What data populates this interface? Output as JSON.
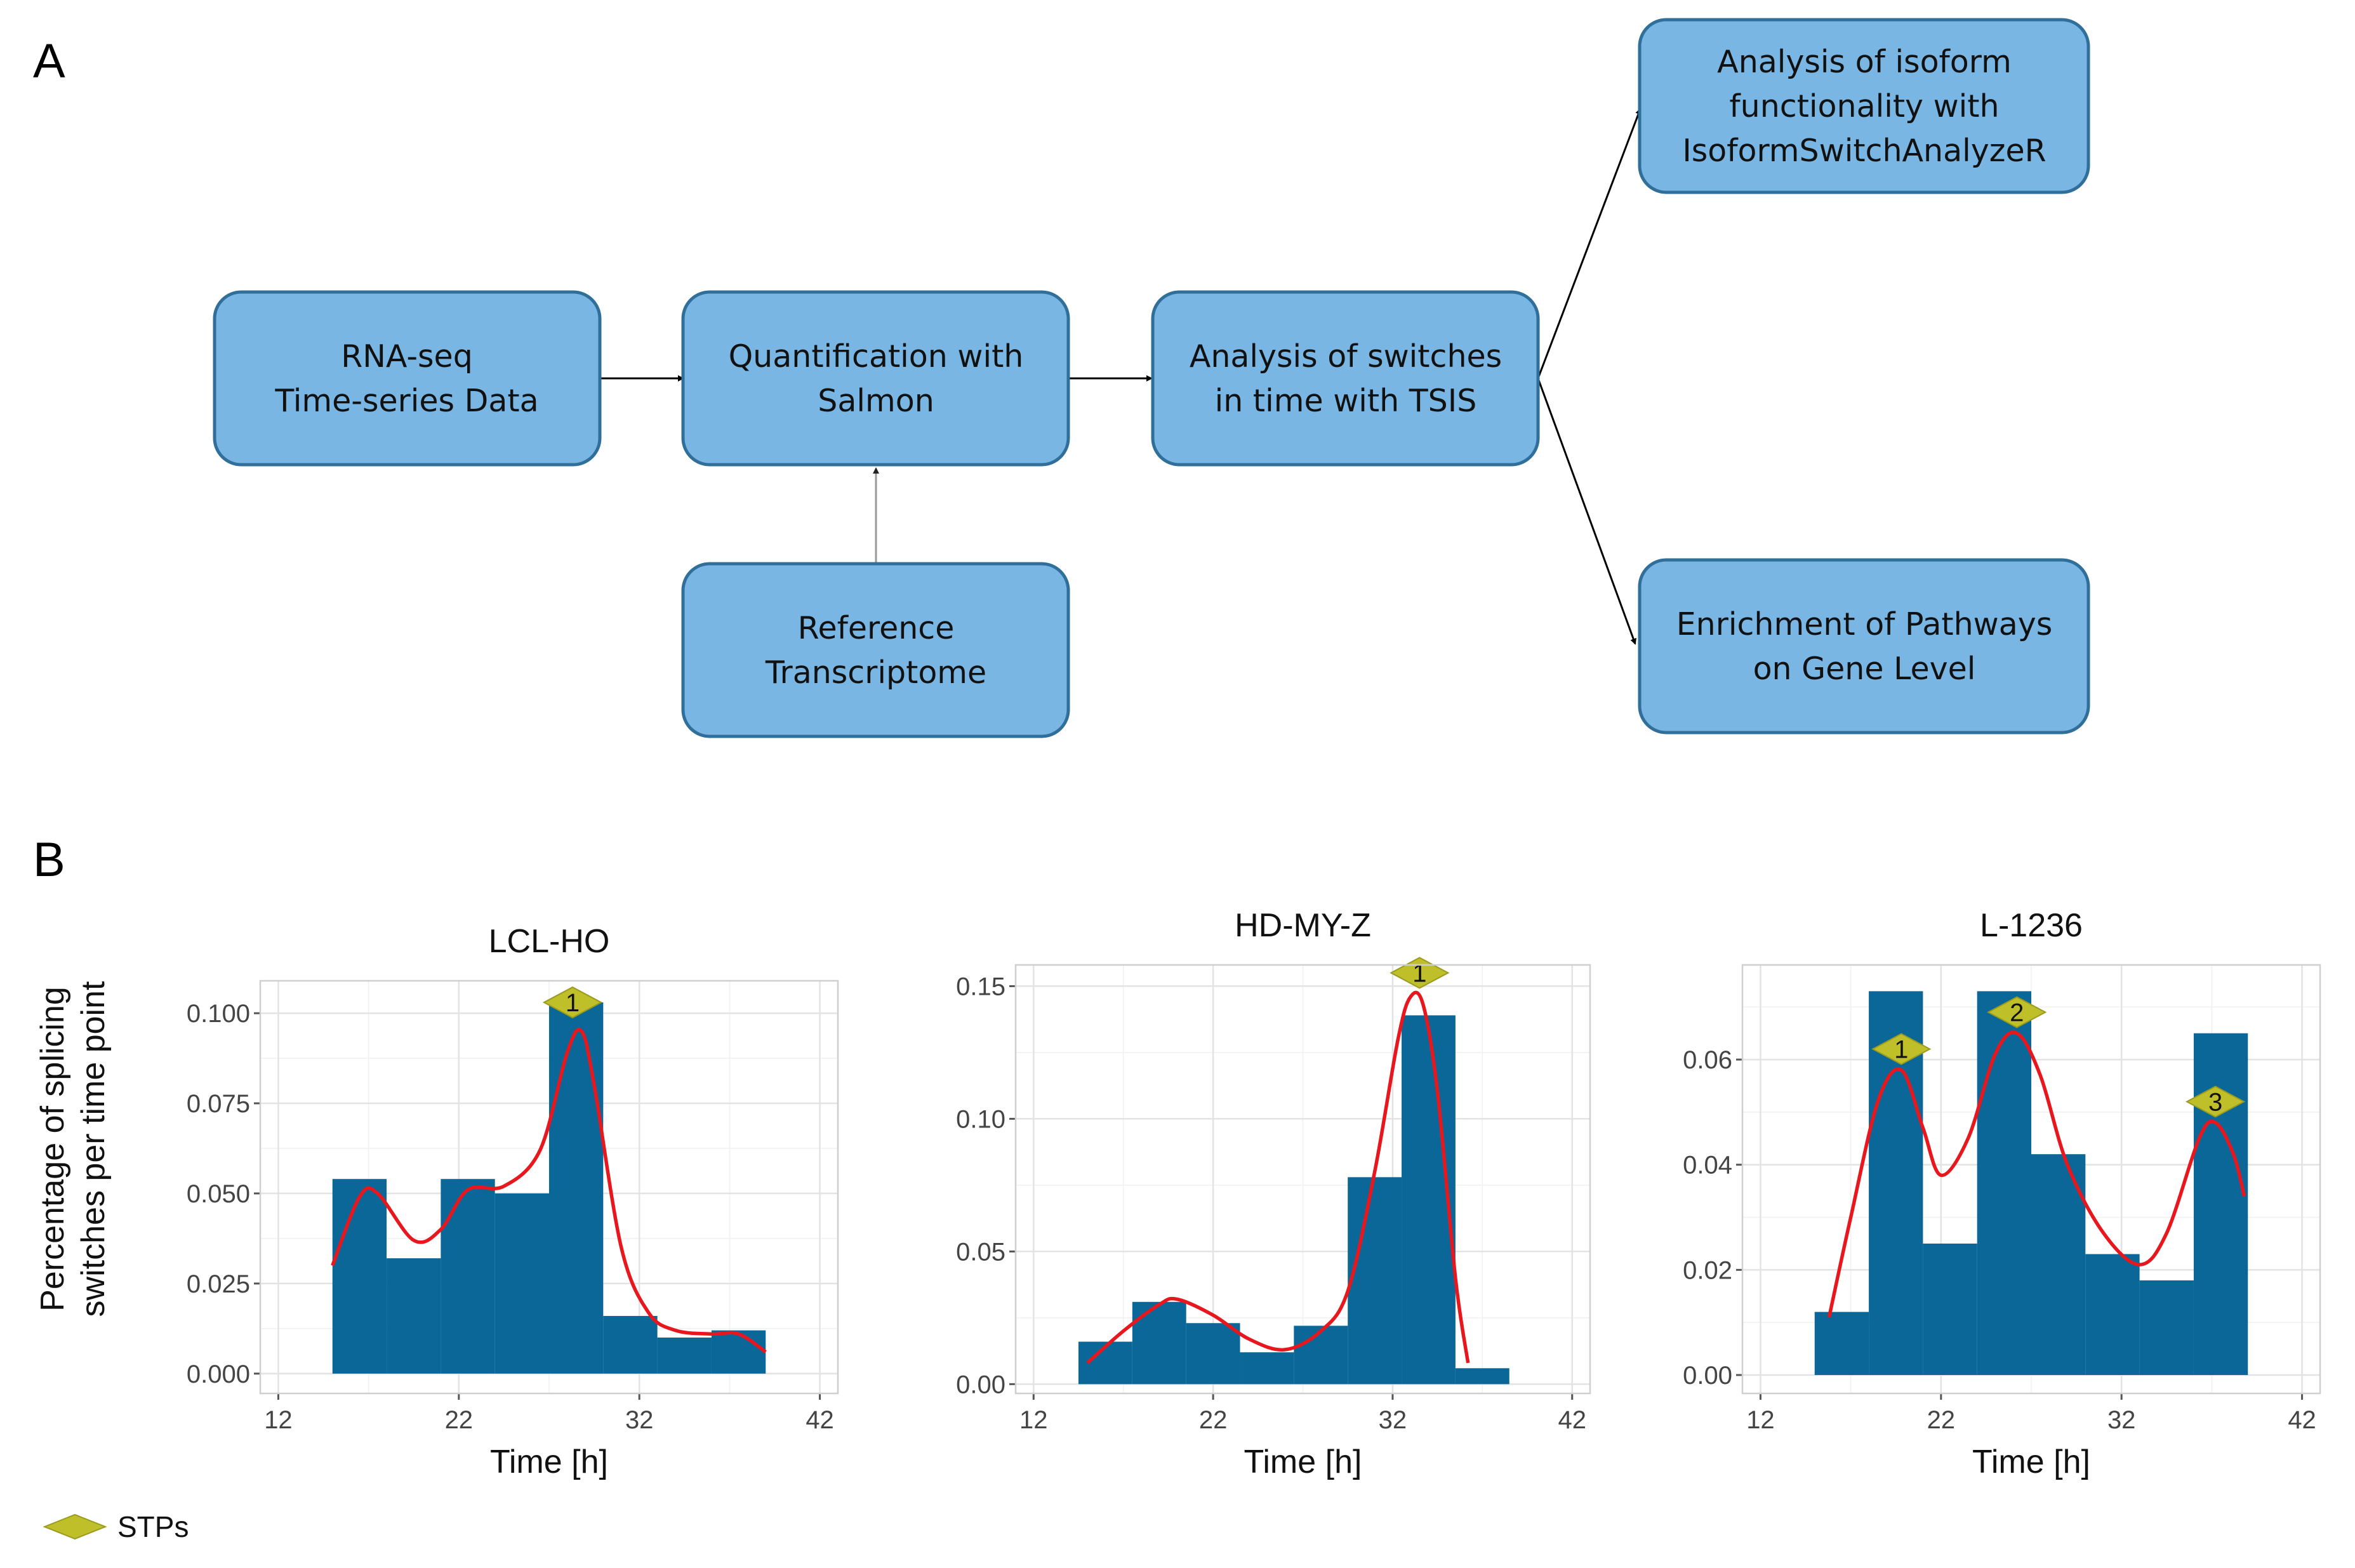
{
  "panel_a_label": "A",
  "panel_b_label": "B",
  "flowchart": {
    "boxes": [
      {
        "id": "rnaseq",
        "lines": [
          "RNA-seq",
          "Time-series Data"
        ]
      },
      {
        "id": "salmon",
        "lines": [
          "Quantification with",
          "Salmon"
        ]
      },
      {
        "id": "tsis",
        "lines": [
          "Analysis of switches",
          "in time with TSIS"
        ]
      },
      {
        "id": "reference",
        "lines": [
          "Reference",
          "Transcriptome"
        ]
      },
      {
        "id": "isoform",
        "lines": [
          "Analysis of isoform",
          "functionality with",
          "IsoformSwitchAnalyzeR"
        ]
      },
      {
        "id": "enrichment",
        "lines": [
          "Enrichment of Pathways",
          "on Gene Level"
        ]
      }
    ],
    "edges": [
      {
        "from": "rnaseq",
        "to": "salmon"
      },
      {
        "from": "reference",
        "to": "salmon"
      },
      {
        "from": "salmon",
        "to": "tsis"
      },
      {
        "from": "tsis",
        "to": "isoform"
      },
      {
        "from": "tsis",
        "to": "enrichment"
      }
    ]
  },
  "y_axis_label_lines": [
    "Percentage of splicing",
    "switches per time point"
  ],
  "legend_label": "STPs",
  "colors": {
    "bar": "#0a6797",
    "curve": "#e8171e",
    "stp": "#bfbf2a",
    "box": "#79b6e3"
  },
  "chart_data": [
    {
      "type": "bar",
      "title": "LCL-HO",
      "xlabel": "Time [h]",
      "xlim": [
        11,
        43
      ],
      "xticks": [
        12,
        22,
        32,
        42
      ],
      "ylim": [
        -0.0055,
        0.109
      ],
      "yticks": [
        0.0,
        0.025,
        0.05,
        0.075,
        0.1
      ],
      "ytick_labels": [
        "0.000",
        "0.025",
        "0.050",
        "0.075",
        "0.100"
      ],
      "bins": [
        {
          "x0": 15,
          "x1": 18,
          "value": 0.054
        },
        {
          "x0": 18,
          "x1": 21,
          "value": 0.032
        },
        {
          "x0": 21,
          "x1": 24,
          "value": 0.054
        },
        {
          "x0": 24,
          "x1": 27,
          "value": 0.05
        },
        {
          "x0": 27,
          "x1": 30,
          "value": 0.103
        },
        {
          "x0": 30,
          "x1": 33,
          "value": 0.016
        },
        {
          "x0": 33,
          "x1": 36,
          "value": 0.01
        },
        {
          "x0": 36,
          "x1": 39,
          "value": 0.012
        }
      ],
      "density_curve": [
        [
          15,
          0.03
        ],
        [
          16.5,
          0.049
        ],
        [
          17.5,
          0.05
        ],
        [
          19.5,
          0.037
        ],
        [
          21,
          0.04
        ],
        [
          22.5,
          0.051
        ],
        [
          24.5,
          0.052
        ],
        [
          26.5,
          0.062
        ],
        [
          28,
          0.089
        ],
        [
          28.8,
          0.095
        ],
        [
          29.5,
          0.08
        ],
        [
          31,
          0.035
        ],
        [
          32.5,
          0.017
        ],
        [
          34,
          0.012
        ],
        [
          36,
          0.011
        ],
        [
          37.5,
          0.011
        ],
        [
          39,
          0.006
        ]
      ],
      "stps": [
        {
          "label": "1",
          "x": 28.3,
          "y": 0.103
        }
      ]
    },
    {
      "type": "bar",
      "title": "HD-MY-Z",
      "xlabel": "Time [h]",
      "xlim": [
        11,
        43
      ],
      "xticks": [
        12,
        22,
        32,
        42
      ],
      "ylim": [
        -0.0035,
        0.158
      ],
      "yticks": [
        0.0,
        0.05,
        0.1,
        0.15
      ],
      "ytick_labels": [
        "0.00",
        "0.05",
        "0.10",
        "0.15"
      ],
      "bins": [
        {
          "x0": 14.5,
          "x1": 17.5,
          "value": 0.016
        },
        {
          "x0": 17.5,
          "x1": 20.5,
          "value": 0.031
        },
        {
          "x0": 20.5,
          "x1": 23.5,
          "value": 0.023
        },
        {
          "x0": 23.5,
          "x1": 26.5,
          "value": 0.012
        },
        {
          "x0": 26.5,
          "x1": 29.5,
          "value": 0.022
        },
        {
          "x0": 29.5,
          "x1": 32.5,
          "value": 0.078
        },
        {
          "x0": 32.5,
          "x1": 35.5,
          "value": 0.139
        },
        {
          "x0": 35.5,
          "x1": 38.5,
          "value": 0.006
        }
      ],
      "density_curve": [
        [
          15,
          0.008
        ],
        [
          17,
          0.02
        ],
        [
          19,
          0.03
        ],
        [
          20,
          0.032
        ],
        [
          22,
          0.026
        ],
        [
          24,
          0.017
        ],
        [
          26,
          0.013
        ],
        [
          28,
          0.02
        ],
        [
          29.5,
          0.035
        ],
        [
          31,
          0.08
        ],
        [
          32.3,
          0.13
        ],
        [
          33,
          0.146
        ],
        [
          33.7,
          0.143
        ],
        [
          34.5,
          0.11
        ],
        [
          35.5,
          0.04
        ],
        [
          36.2,
          0.008
        ]
      ],
      "stps": [
        {
          "label": "1",
          "x": 33.5,
          "y": 0.155
        }
      ]
    },
    {
      "type": "bar",
      "title": "L-1236",
      "xlabel": "Time [h]",
      "xlim": [
        11,
        43
      ],
      "xticks": [
        12,
        22,
        32,
        42
      ],
      "ylim": [
        -0.0035,
        0.078
      ],
      "yticks": [
        0.0,
        0.02,
        0.04,
        0.06
      ],
      "ytick_labels": [
        "0.00",
        "0.02",
        "0.04",
        "0.06"
      ],
      "bins": [
        {
          "x0": 15,
          "x1": 18,
          "value": 0.012
        },
        {
          "x0": 18,
          "x1": 21,
          "value": 0.073
        },
        {
          "x0": 21,
          "x1": 24,
          "value": 0.025
        },
        {
          "x0": 24,
          "x1": 27,
          "value": 0.073
        },
        {
          "x0": 27,
          "x1": 30,
          "value": 0.042
        },
        {
          "x0": 30,
          "x1": 33,
          "value": 0.023
        },
        {
          "x0": 33,
          "x1": 36,
          "value": 0.018
        },
        {
          "x0": 36,
          "x1": 39,
          "value": 0.065
        }
      ],
      "density_curve": [
        [
          15.8,
          0.011
        ],
        [
          17,
          0.03
        ],
        [
          18.5,
          0.052
        ],
        [
          19.8,
          0.058
        ],
        [
          21,
          0.047
        ],
        [
          22,
          0.038
        ],
        [
          23.5,
          0.045
        ],
        [
          25,
          0.061
        ],
        [
          26.2,
          0.065
        ],
        [
          27.5,
          0.057
        ],
        [
          29,
          0.04
        ],
        [
          31,
          0.027
        ],
        [
          33,
          0.021
        ],
        [
          34.5,
          0.027
        ],
        [
          36.3,
          0.045
        ],
        [
          37.2,
          0.048
        ],
        [
          38.2,
          0.042
        ],
        [
          38.8,
          0.034
        ]
      ],
      "stps": [
        {
          "label": "1",
          "x": 19.8,
          "y": 0.062
        },
        {
          "label": "2",
          "x": 26.2,
          "y": 0.069
        },
        {
          "label": "3",
          "x": 37.2,
          "y": 0.052
        }
      ]
    }
  ]
}
